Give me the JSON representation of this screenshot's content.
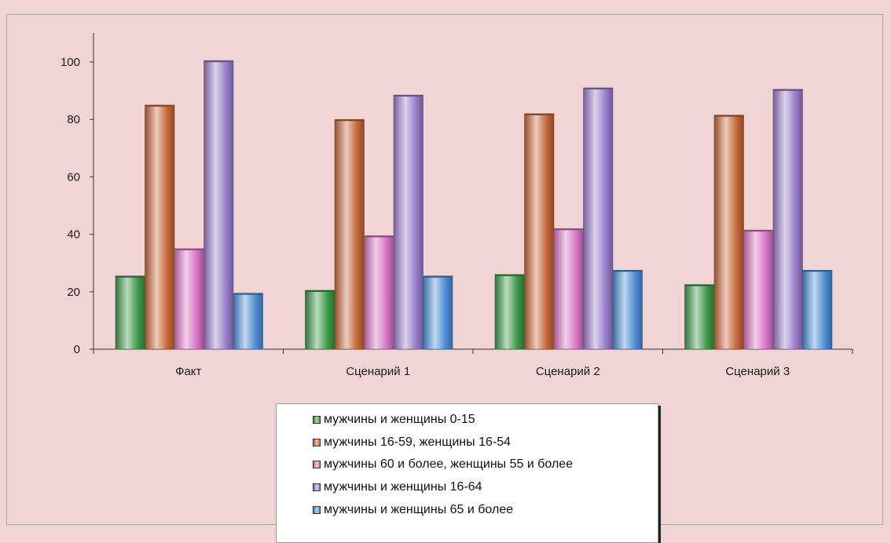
{
  "chart_data": {
    "type": "bar",
    "categories": [
      "Факт",
      "Сценарий 1",
      "Сценарий 2",
      "Сценарий 3"
    ],
    "series": [
      {
        "name": "мужчины и женщины 0-15",
        "values": [
          25.5,
          20.5,
          26,
          22.5
        ],
        "color": "#3f9a4a"
      },
      {
        "name": "мужчины 16-59, женщины 16-54",
        "values": [
          85,
          80,
          82,
          81.5
        ],
        "color": "#c8693a"
      },
      {
        "name": "мужчины 60 и более, женщины 55 и более",
        "values": [
          35,
          39.5,
          42,
          41.5
        ],
        "color": "#d977c9"
      },
      {
        "name": "мужчины и женщины 16-64",
        "values": [
          100.5,
          88.5,
          91,
          90.5
        ],
        "color": "#9b7fcc"
      },
      {
        "name": "мужчины и женщины 65 и более",
        "values": [
          19.5,
          25.5,
          27.5,
          27.5
        ],
        "color": "#4f8fd6"
      }
    ],
    "yticks": [
      "0",
      "20",
      "40",
      "60",
      "80",
      "100"
    ],
    "ylim": [
      0,
      110
    ],
    "grid": false,
    "legend_position": "bottom"
  }
}
